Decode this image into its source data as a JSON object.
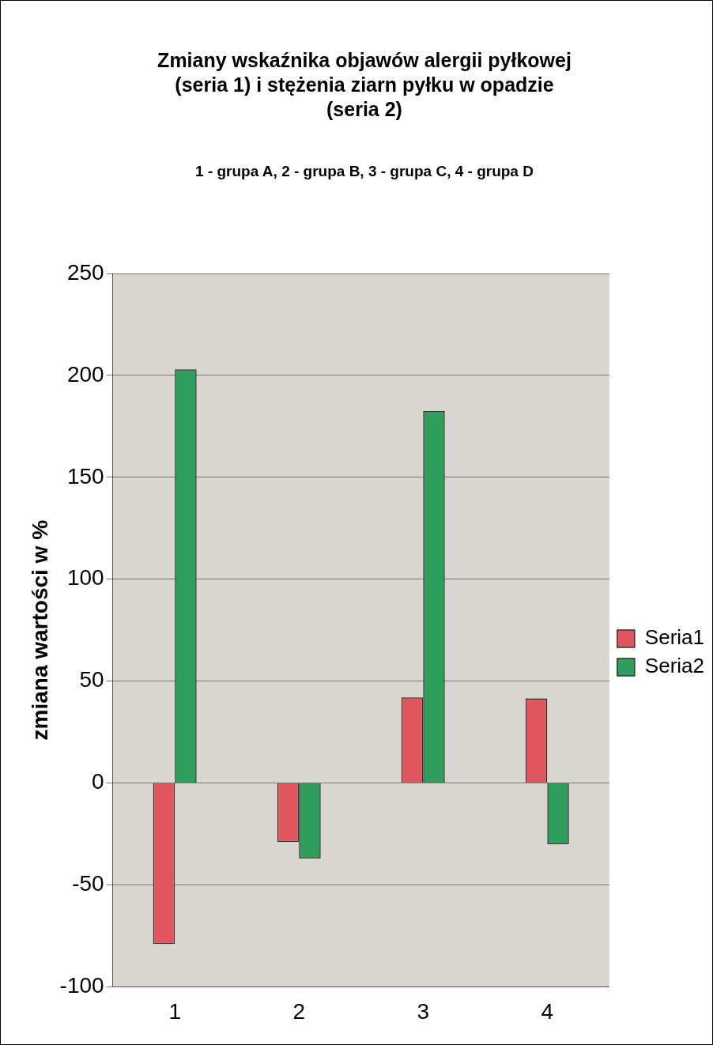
{
  "chart_data": {
    "type": "bar",
    "title": "Zmiany wskaźnika objawów alergii pyłkowej (seria 1) i stężenia ziarn pyłku  w opadzie (seria 2)",
    "subtitle": "1 - grupa A, 2 - grupa B, 3 - grupa C, 4 - grupa D",
    "ylabel": "zmiana wartości w %",
    "categories": [
      "1",
      "2",
      "3",
      "4"
    ],
    "series": [
      {
        "name": "Seria1",
        "color": "#e0565c",
        "values": [
          -79,
          -29,
          42,
          41.5
        ]
      },
      {
        "name": "Seria2",
        "color": "#2e9e5c",
        "values": [
          203,
          -37,
          182.5,
          -30
        ]
      }
    ],
    "ylim": [
      -100,
      250
    ],
    "yticks": [
      -100,
      -50,
      0,
      50,
      100,
      150,
      200,
      250
    ],
    "grid": "y",
    "legend": "right"
  }
}
